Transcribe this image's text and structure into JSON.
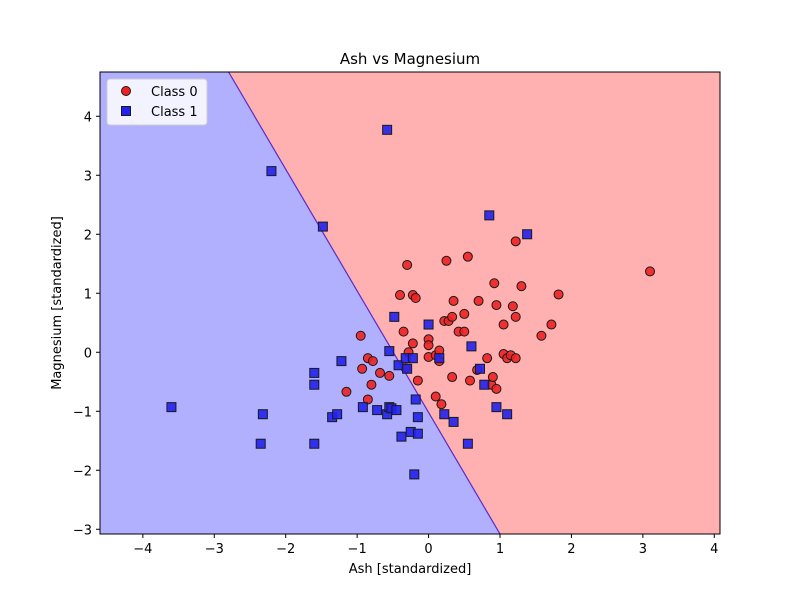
{
  "chart_data": {
    "type": "scatter",
    "title": "Ash vs Magnesium",
    "xlabel": "Ash [standardized]",
    "ylabel": "Magnesium [standardized]",
    "xlim": [
      -4.6,
      4.08
    ],
    "ylim": [
      -3.08,
      4.75
    ],
    "xticks": [
      "−4",
      "−3",
      "−2",
      "−1",
      "0",
      "1",
      "2",
      "3",
      "4"
    ],
    "yticks": [
      "−3",
      "−2",
      "−1",
      "0",
      "1",
      "2",
      "3",
      "4"
    ],
    "grid": false,
    "legend_position": "top-left",
    "decision_boundary": {
      "line": [
        [
          -2.8,
          4.75
        ],
        [
          1.0,
          -3.08
        ]
      ],
      "left_region_color": "#b0b0ff",
      "right_region_color": "#ffb0b0",
      "boundary_color": "#5a2ad0"
    },
    "series": [
      {
        "name": "Class 0",
        "marker": "circle",
        "color": "#ee2222",
        "edge_color": "#1a1a1a",
        "points": [
          [
            -0.95,
            0.28
          ],
          [
            -0.85,
            -0.1
          ],
          [
            -0.78,
            -0.15
          ],
          [
            -0.68,
            -0.35
          ],
          [
            -0.55,
            -0.4
          ],
          [
            -0.8,
            -0.55
          ],
          [
            -1.15,
            -0.67
          ],
          [
            -0.85,
            -0.8
          ],
          [
            -0.93,
            -0.28
          ],
          [
            -0.4,
            0.97
          ],
          [
            -0.35,
            0.35
          ],
          [
            -0.3,
            1.48
          ],
          [
            -0.22,
            0.97
          ],
          [
            -0.18,
            0.92
          ],
          [
            -0.22,
            0.15
          ],
          [
            -0.28,
            0.0
          ],
          [
            -0.32,
            -0.27
          ],
          [
            -0.15,
            -0.48
          ],
          [
            0.0,
            0.22
          ],
          [
            0.0,
            0.12
          ],
          [
            0.0,
            -0.08
          ],
          [
            0.1,
            -0.05
          ],
          [
            0.15,
            0.03
          ],
          [
            0.15,
            -0.15
          ],
          [
            0.1,
            -0.75
          ],
          [
            0.18,
            -0.88
          ],
          [
            0.22,
            0.53
          ],
          [
            0.28,
            0.53
          ],
          [
            0.25,
            1.55
          ],
          [
            0.33,
            0.6
          ],
          [
            0.35,
            0.87
          ],
          [
            0.33,
            -0.42
          ],
          [
            0.42,
            0.35
          ],
          [
            0.5,
            0.65
          ],
          [
            0.5,
            0.35
          ],
          [
            0.55,
            1.62
          ],
          [
            0.58,
            -0.48
          ],
          [
            0.68,
            -0.3
          ],
          [
            0.7,
            0.87
          ],
          [
            0.82,
            -0.1
          ],
          [
            0.88,
            -0.55
          ],
          [
            0.9,
            -0.42
          ],
          [
            0.92,
            1.17
          ],
          [
            0.95,
            0.8
          ],
          [
            0.95,
            -0.62
          ],
          [
            1.05,
            0.47
          ],
          [
            1.05,
            -0.03
          ],
          [
            1.1,
            -0.1
          ],
          [
            1.15,
            -0.05
          ],
          [
            1.18,
            0.78
          ],
          [
            1.22,
            0.6
          ],
          [
            1.22,
            -0.1
          ],
          [
            1.22,
            1.88
          ],
          [
            1.3,
            1.12
          ],
          [
            1.58,
            0.28
          ],
          [
            1.72,
            0.47
          ],
          [
            1.82,
            0.98
          ],
          [
            3.1,
            1.37
          ]
        ]
      },
      {
        "name": "Class 1",
        "marker": "square",
        "color": "#2222ee",
        "edge_color": "#1a1a1a",
        "points": [
          [
            -3.6,
            -0.93
          ],
          [
            -2.35,
            -1.55
          ],
          [
            -2.32,
            -1.05
          ],
          [
            -2.2,
            3.07
          ],
          [
            -1.6,
            -0.35
          ],
          [
            -1.6,
            -0.55
          ],
          [
            -1.6,
            -1.55
          ],
          [
            -1.48,
            2.13
          ],
          [
            -1.35,
            -1.1
          ],
          [
            -1.28,
            -1.05
          ],
          [
            -1.22,
            -0.15
          ],
          [
            -0.92,
            -0.93
          ],
          [
            -0.72,
            -0.98
          ],
          [
            -0.58,
            -1.05
          ],
          [
            -0.55,
            -0.93
          ],
          [
            -0.52,
            -0.95
          ],
          [
            -0.45,
            -0.98
          ],
          [
            -0.38,
            -1.43
          ],
          [
            -0.25,
            -1.35
          ],
          [
            -0.2,
            -2.07
          ],
          [
            -0.18,
            -0.8
          ],
          [
            -0.15,
            -1.1
          ],
          [
            -0.15,
            -1.38
          ],
          [
            -0.55,
            0.02
          ],
          [
            -0.48,
            0.6
          ],
          [
            -0.42,
            -0.22
          ],
          [
            -0.32,
            -0.1
          ],
          [
            -0.3,
            -0.28
          ],
          [
            -0.22,
            -0.1
          ],
          [
            -0.58,
            3.77
          ],
          [
            0.0,
            0.47
          ],
          [
            0.15,
            -0.1
          ],
          [
            0.22,
            -1.05
          ],
          [
            0.35,
            -1.18
          ],
          [
            0.55,
            -1.55
          ],
          [
            0.6,
            0.1
          ],
          [
            0.72,
            -0.28
          ],
          [
            0.78,
            -0.55
          ],
          [
            0.85,
            2.32
          ],
          [
            0.95,
            -0.93
          ],
          [
            1.1,
            -1.05
          ],
          [
            1.38,
            2.0
          ]
        ]
      }
    ]
  }
}
